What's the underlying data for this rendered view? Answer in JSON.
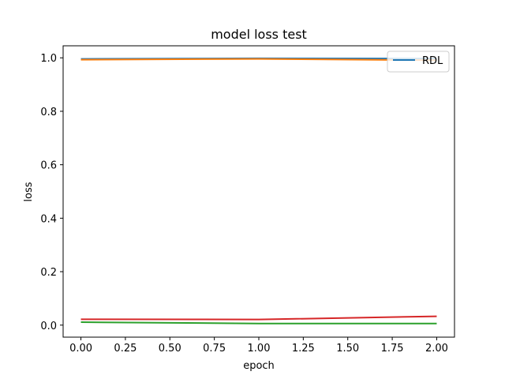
{
  "chart_data": {
    "type": "line",
    "title": "model loss test",
    "xlabel": "epoch",
    "ylabel": "loss",
    "x": [
      0,
      1,
      2
    ],
    "xlim": [
      -0.1,
      2.1
    ],
    "ylim": [
      -0.045,
      1.045
    ],
    "xticks": [
      "0.00",
      "0.25",
      "0.50",
      "0.75",
      "1.00",
      "1.25",
      "1.50",
      "1.75",
      "2.00"
    ],
    "yticks": [
      "0.0",
      "0.2",
      "0.4",
      "0.6",
      "0.8",
      "1.0"
    ],
    "grid": false,
    "legend_position": "top-right",
    "series": [
      {
        "name": "RDL",
        "color": "#1f77b4",
        "values": [
          0.996,
          0.998,
          0.997
        ]
      },
      {
        "color": "#ff7f0e",
        "values": [
          0.993,
          0.996,
          0.991
        ]
      },
      {
        "color": "#2ca02c",
        "values": [
          0.011,
          0.006,
          0.006
        ]
      },
      {
        "color": "#d62728",
        "values": [
          0.022,
          0.021,
          0.033
        ]
      }
    ]
  }
}
